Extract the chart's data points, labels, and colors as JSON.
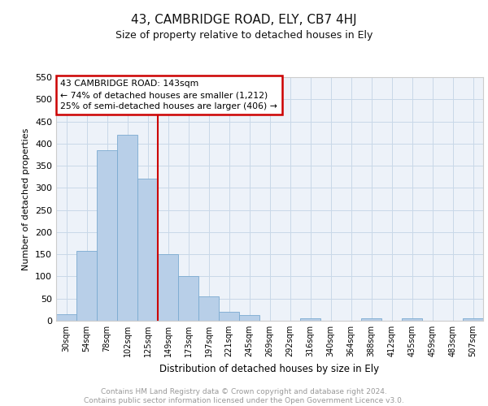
{
  "title_line1": "43, CAMBRIDGE ROAD, ELY, CB7 4HJ",
  "title_line2": "Size of property relative to detached houses in Ely",
  "xlabel": "Distribution of detached houses by size in Ely",
  "ylabel": "Number of detached properties",
  "bar_labels": [
    "30sqm",
    "54sqm",
    "78sqm",
    "102sqm",
    "125sqm",
    "149sqm",
    "173sqm",
    "197sqm",
    "221sqm",
    "245sqm",
    "269sqm",
    "292sqm",
    "316sqm",
    "340sqm",
    "364sqm",
    "388sqm",
    "412sqm",
    "435sqm",
    "459sqm",
    "483sqm",
    "507sqm"
  ],
  "bar_values": [
    15,
    157,
    385,
    420,
    320,
    150,
    100,
    55,
    20,
    12,
    0,
    0,
    5,
    0,
    0,
    5,
    0,
    5,
    0,
    0,
    5
  ],
  "bar_color": "#b8cfe8",
  "bar_edge_color": "#7aaad0",
  "grid_color": "#c8d8e8",
  "vline_color": "#cc0000",
  "annotation_text": "43 CAMBRIDGE ROAD: 143sqm\n← 74% of detached houses are smaller (1,212)\n25% of semi-detached houses are larger (406) →",
  "annotation_box_color": "#cc0000",
  "ylim": [
    0,
    550
  ],
  "yticks": [
    0,
    50,
    100,
    150,
    200,
    250,
    300,
    350,
    400,
    450,
    500,
    550
  ],
  "footnote": "Contains HM Land Registry data © Crown copyright and database right 2024.\nContains public sector information licensed under the Open Government Licence v3.0.",
  "footnote_color": "#999999",
  "background_color": "#ffffff",
  "plot_bg_color": "#edf2f9"
}
